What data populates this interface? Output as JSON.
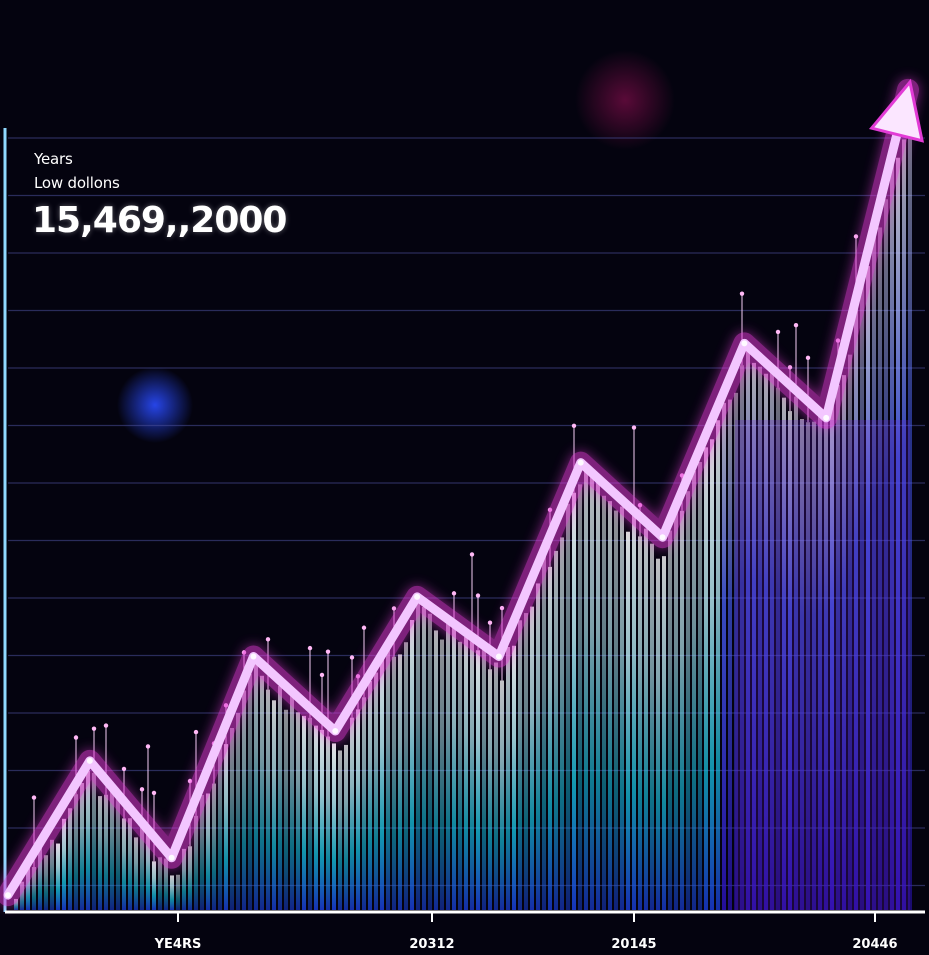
{
  "header": {
    "ylabel_line1": "Years",
    "ylabel_line2": "Low dollons",
    "headline_value": "15,469,,2000"
  },
  "colors": {
    "background": "#04030f",
    "line": "#e23bd6",
    "bar_low": "#12d8e6",
    "bar_high": "#ffffff",
    "bar_right": "#2a1bd0",
    "grid": "#4a4f9a"
  },
  "chart_data": {
    "type": "line",
    "title": "",
    "xlabel": "",
    "ylabel": "",
    "x_ticks": [
      "YE4RS",
      "20312",
      "20145",
      "20446"
    ],
    "grid": true,
    "arrow_at_end": true,
    "series": [
      {
        "values": [
          1,
          10,
          3.5,
          17,
          12,
          21,
          17,
          30,
          25,
          38,
          33,
          55
        ]
      }
    ],
    "ylim": [
      0,
      57
    ]
  }
}
